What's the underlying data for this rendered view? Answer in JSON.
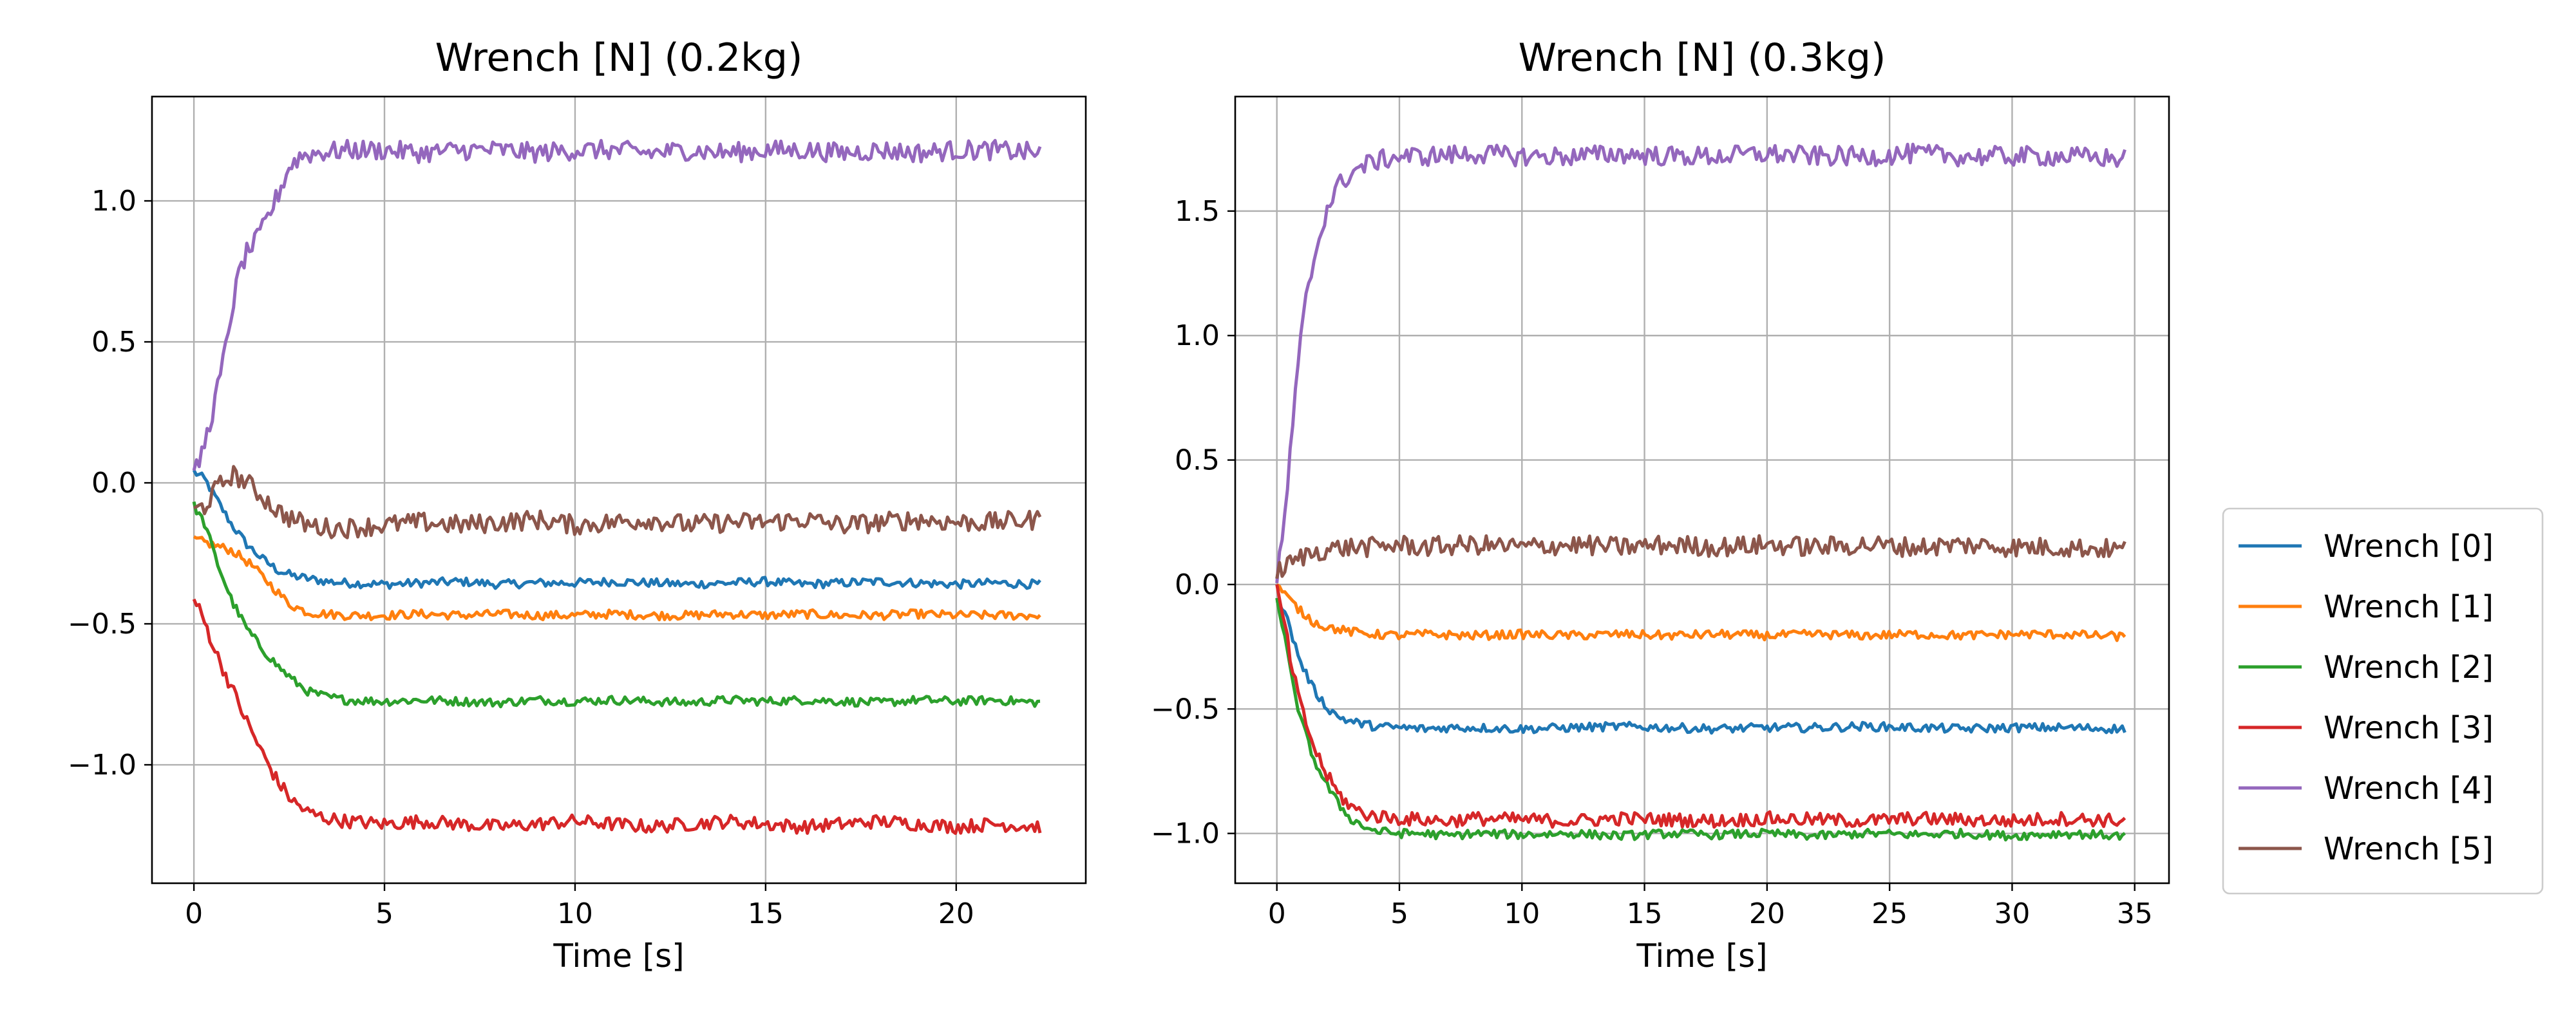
{
  "chart_data": [
    {
      "type": "line",
      "title": "Wrench [N] (0.2kg)",
      "xlabel": "Time [s]",
      "ylabel": "",
      "xlim": [
        -1.1,
        23.4
      ],
      "ylim": [
        -1.42,
        1.37
      ],
      "xticks": [
        0,
        5,
        10,
        15,
        20
      ],
      "xtick_labels": [
        "0",
        "5",
        "10",
        "15",
        "20"
      ],
      "yticks": [
        -1.0,
        -0.5,
        0.0,
        0.5,
        1.0
      ],
      "ytick_labels": [
        "−1.0",
        "−0.5",
        "0.0",
        "0.5",
        "1.0"
      ],
      "grid": true,
      "series": [
        {
          "name": "Wrench [0]",
          "color": "#1f77b4",
          "x": [
            0,
            0.3,
            0.6,
            1,
            1.4,
            1.8,
            2.2,
            2.6,
            3,
            3.5,
            4,
            5,
            6,
            7,
            8,
            9,
            10,
            11,
            12,
            13,
            14,
            15,
            16,
            17,
            18,
            19,
            20,
            21,
            22.2
          ],
          "y": [
            0.04,
            0.01,
            -0.06,
            -0.15,
            -0.22,
            -0.27,
            -0.31,
            -0.33,
            -0.34,
            -0.35,
            -0.355,
            -0.36,
            -0.355,
            -0.35,
            -0.36,
            -0.355,
            -0.355,
            -0.35,
            -0.355,
            -0.36,
            -0.355,
            -0.35,
            -0.36,
            -0.355,
            -0.35,
            -0.355,
            -0.36,
            -0.355,
            -0.36
          ]
        },
        {
          "name": "Wrench [1]",
          "color": "#ff7f0e",
          "x": [
            0,
            0.5,
            1,
            1.5,
            2,
            2.5,
            3,
            4,
            5,
            6,
            7,
            8,
            9,
            10,
            11,
            12,
            13,
            14,
            15,
            16,
            17,
            18,
            19,
            20,
            21,
            22.2
          ],
          "y": [
            -0.2,
            -0.22,
            -0.24,
            -0.29,
            -0.36,
            -0.43,
            -0.46,
            -0.47,
            -0.47,
            -0.465,
            -0.47,
            -0.465,
            -0.47,
            -0.47,
            -0.465,
            -0.47,
            -0.47,
            -0.465,
            -0.47,
            -0.465,
            -0.47,
            -0.47,
            -0.465,
            -0.47,
            -0.47,
            -0.47
          ]
        },
        {
          "name": "Wrench [2]",
          "color": "#2ca02c",
          "x": [
            0,
            0.3,
            0.6,
            1,
            1.4,
            1.8,
            2.2,
            2.6,
            3,
            3.5,
            4,
            5,
            6,
            7,
            8,
            9,
            10,
            11,
            12,
            13,
            14,
            15,
            16,
            17,
            18,
            19,
            20,
            21,
            22.2
          ],
          "y": [
            -0.08,
            -0.15,
            -0.28,
            -0.42,
            -0.52,
            -0.59,
            -0.65,
            -0.7,
            -0.74,
            -0.76,
            -0.77,
            -0.775,
            -0.77,
            -0.775,
            -0.78,
            -0.77,
            -0.775,
            -0.77,
            -0.775,
            -0.78,
            -0.77,
            -0.775,
            -0.77,
            -0.775,
            -0.78,
            -0.77,
            -0.775,
            -0.77,
            -0.78
          ]
        },
        {
          "name": "Wrench [3]",
          "color": "#d62728",
          "x": [
            0,
            0.3,
            0.6,
            1,
            1.4,
            1.8,
            2.2,
            2.6,
            3,
            3.5,
            4,
            5,
            6,
            7,
            8,
            9,
            10,
            11,
            12,
            13,
            14,
            15,
            16,
            17,
            18,
            19,
            20,
            21,
            22.2
          ],
          "y": [
            -0.41,
            -0.5,
            -0.61,
            -0.73,
            -0.85,
            -0.96,
            -1.06,
            -1.13,
            -1.17,
            -1.19,
            -1.2,
            -1.21,
            -1.2,
            -1.21,
            -1.22,
            -1.21,
            -1.2,
            -1.21,
            -1.22,
            -1.21,
            -1.2,
            -1.21,
            -1.22,
            -1.21,
            -1.2,
            -1.21,
            -1.22,
            -1.21,
            -1.22
          ]
        },
        {
          "name": "Wrench [4]",
          "color": "#9467bd",
          "x": [
            0,
            0.2,
            0.4,
            0.6,
            0.8,
            1,
            1.2,
            1.4,
            1.6,
            1.8,
            2,
            2.2,
            2.5,
            2.8,
            3.2,
            4,
            5,
            6,
            7,
            8,
            9,
            10,
            11,
            12,
            13,
            14,
            15,
            16,
            17,
            18,
            19,
            20,
            21,
            22.2
          ],
          "y": [
            0.02,
            0.1,
            0.2,
            0.32,
            0.45,
            0.62,
            0.75,
            0.82,
            0.85,
            0.9,
            0.96,
            1.02,
            1.12,
            1.16,
            1.17,
            1.18,
            1.18,
            1.17,
            1.18,
            1.18,
            1.17,
            1.18,
            1.18,
            1.17,
            1.18,
            1.17,
            1.18,
            1.18,
            1.17,
            1.18,
            1.17,
            1.18,
            1.18,
            1.17
          ]
        },
        {
          "name": "Wrench [5]",
          "color": "#8c564b",
          "x": [
            0,
            0.3,
            0.6,
            1,
            1.4,
            1.8,
            2.2,
            2.6,
            3,
            3.5,
            4,
            5,
            6,
            7,
            8,
            9,
            10,
            11,
            12,
            13,
            14,
            15,
            16,
            17,
            18,
            19,
            20,
            21,
            22.2
          ],
          "y": [
            -0.1,
            -0.08,
            -0.02,
            0.03,
            0.0,
            -0.05,
            -0.1,
            -0.13,
            -0.15,
            -0.16,
            -0.16,
            -0.15,
            -0.14,
            -0.15,
            -0.14,
            -0.13,
            -0.15,
            -0.14,
            -0.13,
            -0.15,
            -0.14,
            -0.14,
            -0.13,
            -0.15,
            -0.14,
            -0.13,
            -0.14,
            -0.14,
            -0.13
          ]
        }
      ]
    },
    {
      "type": "line",
      "title": "Wrench [N] (0.3kg)",
      "xlabel": "Time [s]",
      "ylabel": "",
      "xlim": [
        -1.7,
        36.4
      ],
      "ylim": [
        -1.2,
        1.96
      ],
      "xticks": [
        0,
        5,
        10,
        15,
        20,
        25,
        30,
        35
      ],
      "xtick_labels": [
        "0",
        "5",
        "10",
        "15",
        "20",
        "25",
        "30",
        "35"
      ],
      "yticks": [
        -1.0,
        -0.5,
        0.0,
        0.5,
        1.0,
        1.5
      ],
      "ytick_labels": [
        "−1.0",
        "−0.5",
        "0.0",
        "0.5",
        "1.0",
        "1.5"
      ],
      "grid": true,
      "series": [
        {
          "name": "Wrench [0]",
          "color": "#1f77b4",
          "x": [
            0,
            0.3,
            0.6,
            1,
            1.5,
            2,
            2.5,
            3,
            3.5,
            4,
            5,
            6,
            7,
            8,
            10,
            12,
            14,
            16,
            18,
            20,
            22,
            24,
            26,
            28,
            30,
            32,
            34.6
          ],
          "y": [
            -0.05,
            -0.1,
            -0.2,
            -0.32,
            -0.42,
            -0.49,
            -0.53,
            -0.55,
            -0.56,
            -0.57,
            -0.575,
            -0.58,
            -0.575,
            -0.575,
            -0.58,
            -0.575,
            -0.57,
            -0.575,
            -0.58,
            -0.575,
            -0.575,
            -0.57,
            -0.575,
            -0.58,
            -0.575,
            -0.575,
            -0.58
          ]
        },
        {
          "name": "Wrench [1]",
          "color": "#ff7f0e",
          "x": [
            0,
            0.5,
            1,
            1.5,
            2,
            3,
            4,
            5,
            6,
            8,
            10,
            12,
            14,
            16,
            18,
            20,
            22,
            24,
            26,
            28,
            30,
            32,
            34.6
          ],
          "y": [
            0.0,
            -0.06,
            -0.11,
            -0.15,
            -0.17,
            -0.19,
            -0.2,
            -0.205,
            -0.2,
            -0.205,
            -0.2,
            -0.205,
            -0.2,
            -0.205,
            -0.2,
            -0.205,
            -0.2,
            -0.205,
            -0.2,
            -0.205,
            -0.2,
            -0.2,
            -0.21
          ]
        },
        {
          "name": "Wrench [2]",
          "color": "#2ca02c",
          "x": [
            0,
            0.3,
            0.6,
            1,
            1.5,
            2,
            2.5,
            3,
            3.5,
            4,
            5,
            6,
            7,
            8,
            10,
            12,
            14,
            16,
            18,
            20,
            22,
            24,
            26,
            28,
            30,
            32,
            34.6
          ],
          "y": [
            -0.05,
            -0.2,
            -0.38,
            -0.55,
            -0.7,
            -0.8,
            -0.88,
            -0.94,
            -0.97,
            -0.99,
            -1.0,
            -1.0,
            -1.01,
            -1.0,
            -1.005,
            -1.0,
            -1.01,
            -1.0,
            -1.005,
            -1.0,
            -1.01,
            -1.0,
            -1.005,
            -1.0,
            -1.01,
            -1.0,
            -1.01
          ]
        },
        {
          "name": "Wrench [3]",
          "color": "#d62728",
          "x": [
            0,
            0.3,
            0.6,
            1,
            1.5,
            2,
            2.5,
            3,
            3.5,
            4,
            5,
            6,
            7,
            8,
            10,
            12,
            14,
            16,
            18,
            20,
            22,
            24,
            26,
            28,
            30,
            32,
            34.6
          ],
          "y": [
            -0.02,
            -0.15,
            -0.33,
            -0.5,
            -0.65,
            -0.76,
            -0.84,
            -0.89,
            -0.92,
            -0.93,
            -0.94,
            -0.945,
            -0.95,
            -0.94,
            -0.945,
            -0.95,
            -0.94,
            -0.945,
            -0.95,
            -0.94,
            -0.945,
            -0.95,
            -0.94,
            -0.945,
            -0.95,
            -0.94,
            -0.95
          ]
        },
        {
          "name": "Wrench [4]",
          "color": "#9467bd",
          "x": [
            0,
            0.2,
            0.4,
            0.6,
            0.8,
            1,
            1.2,
            1.5,
            1.8,
            2,
            2.5,
            3,
            3.5,
            4,
            5,
            6,
            8,
            10,
            12,
            14,
            16,
            18,
            20,
            22,
            24,
            26,
            28,
            30,
            32,
            34.6
          ],
          "y": [
            0.03,
            0.15,
            0.35,
            0.6,
            0.8,
            1.0,
            1.15,
            1.3,
            1.42,
            1.5,
            1.6,
            1.65,
            1.68,
            1.7,
            1.72,
            1.72,
            1.73,
            1.72,
            1.72,
            1.73,
            1.72,
            1.72,
            1.73,
            1.72,
            1.72,
            1.73,
            1.72,
            1.72,
            1.72,
            1.71
          ]
        },
        {
          "name": "Wrench [5]",
          "color": "#8c564b",
          "x": [
            0,
            0.5,
            1,
            1.5,
            2,
            3,
            4,
            5,
            6,
            8,
            10,
            12,
            14,
            16,
            18,
            20,
            22,
            24,
            26,
            28,
            30,
            32,
            34.6
          ],
          "y": [
            0.05,
            0.08,
            0.11,
            0.13,
            0.14,
            0.15,
            0.15,
            0.16,
            0.15,
            0.16,
            0.15,
            0.16,
            0.15,
            0.16,
            0.15,
            0.16,
            0.15,
            0.16,
            0.15,
            0.16,
            0.15,
            0.15,
            0.14
          ]
        }
      ]
    }
  ],
  "legend": {
    "placement": "right",
    "entries": [
      {
        "name": "Wrench [0]",
        "color": "#1f77b4"
      },
      {
        "name": "Wrench [1]",
        "color": "#ff7f0e"
      },
      {
        "name": "Wrench [2]",
        "color": "#2ca02c"
      },
      {
        "name": "Wrench [3]",
        "color": "#d62728"
      },
      {
        "name": "Wrench [4]",
        "color": "#9467bd"
      },
      {
        "name": "Wrench [5]",
        "color": "#8c564b"
      }
    ]
  }
}
